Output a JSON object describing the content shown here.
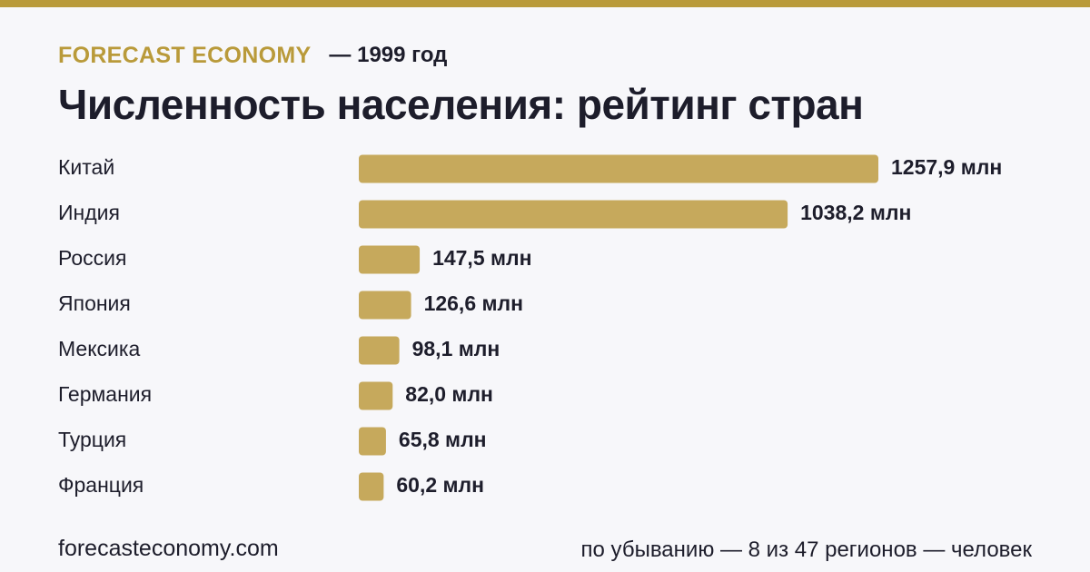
{
  "header": {
    "brand": "FORECAST ECONOMY",
    "year_label": "— 1999 год"
  },
  "chart_data": {
    "type": "bar",
    "orientation": "horizontal",
    "title": "Численность населения: рейтинг стран",
    "categories": [
      "Китай",
      "Индия",
      "Россия",
      "Япония",
      "Мексика",
      "Германия",
      "Турция",
      "Франция"
    ],
    "values": [
      1257.9,
      1038.2,
      147.5,
      126.6,
      98.1,
      82.0,
      65.8,
      60.2
    ],
    "value_labels": [
      "1257,9 млн",
      "1038,2 млн",
      "147,5 млн",
      "126,6 млн",
      "98,1 млн",
      "82,0 млн",
      "65,8 млн",
      "60,2 млн"
    ],
    "unit": "млн",
    "bar_color": "#c6a95c",
    "grid": false,
    "legend": "none"
  },
  "footer": {
    "site": "forecasteconomy.com",
    "note": "по убыванию — 8 из 47 регионов — человек"
  },
  "colors": {
    "accent": "#b99a3a",
    "background": "#f7f7fa",
    "text": "#1d1d2b"
  }
}
